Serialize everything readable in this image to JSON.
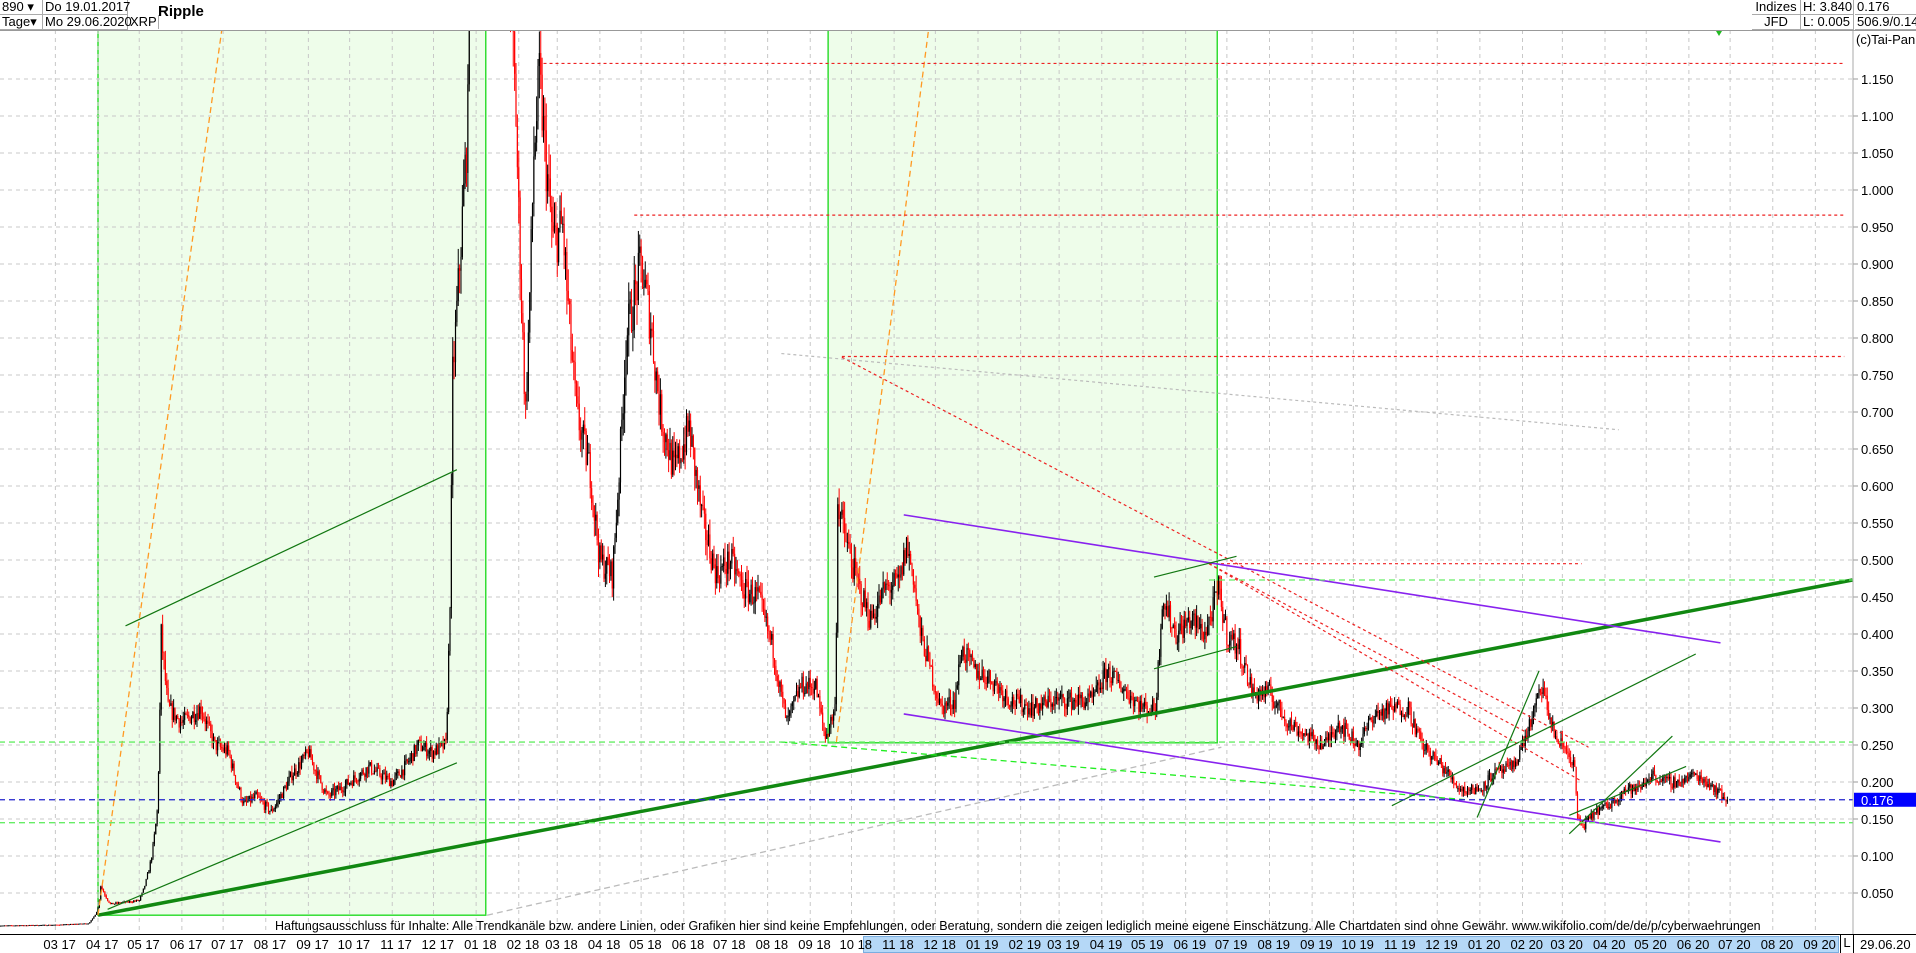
{
  "header": {
    "count": "890",
    "start_date": "Do 19.01.2017",
    "period": "Tage",
    "end_date": "Mo 29.06.2020",
    "symbol": "XRP",
    "name": "Ripple",
    "exchange_group": "Indizes",
    "exchange": "JFD",
    "high": "H: 3.840",
    "low": "L: 0.005",
    "last": "0.176",
    "extra": "506.9/0.14",
    "copyright": "(c)Tai-Pan"
  },
  "footer": {
    "disclaimer": "Haftungsausschluss für Inhalte: Alle Trendkanäle bzw. andere Linien, oder Grafiken hier sind keine Empfehlungen, oder Beratung, sondern die zeigen lediglich meine eigene Einschätzung. Alle Chartdaten sind ohne Gewähr.  www.wikifolio.com/de/de/p/cyberwaehrungen",
    "scale_mode": "L",
    "last_date": "29.06.20"
  },
  "colors": {
    "up": "#000000",
    "down": "#ff0000",
    "shade": "#eefdea",
    "shade_border": "#33dd33",
    "last_price": "#0000ff"
  },
  "chart_data": {
    "type": "candlestick",
    "title": "Ripple",
    "ylim": [
      0,
      1.2
    ],
    "grid": true,
    "y_ticks": [
      "1.150",
      "1.100",
      "1.050",
      "1.000",
      "0.950",
      "0.900",
      "0.850",
      "0.800",
      "0.750",
      "0.700",
      "0.650",
      "0.600",
      "0.550",
      "0.500",
      "0.450",
      "0.400",
      "0.350",
      "0.300",
      "0.250",
      "0.200",
      "0.150",
      "0.100",
      "0.050"
    ],
    "last_price_label": "0.176",
    "x_ticks": [
      "03 17",
      "04 17",
      "05 17",
      "06 17",
      "07 17",
      "08 17",
      "09 17",
      "10 17",
      "11 17",
      "12 17",
      "01 18",
      "02 18",
      "03 18",
      "04 18",
      "05 18",
      "06 18",
      "07 18",
      "08 18",
      "09 18",
      "10 18",
      "11 18",
      "12 18",
      "01 19",
      "02 19",
      "03 19",
      "04 19",
      "05 19",
      "06 19",
      "07 19",
      "08 19",
      "09 19",
      "10 19",
      "11 19",
      "12 19",
      "01 20",
      "02 20",
      "03 20",
      "04 20",
      "05 20",
      "06 20",
      "07 20",
      "08 20",
      "09 20"
    ],
    "close_points": [
      [
        "2017-01-19",
        0.006
      ],
      [
        "2017-03-01",
        0.007
      ],
      [
        "2017-03-25",
        0.009
      ],
      [
        "2017-04-01",
        0.03
      ],
      [
        "2017-04-03",
        0.06
      ],
      [
        "2017-04-10",
        0.035
      ],
      [
        "2017-05-01",
        0.04
      ],
      [
        "2017-05-10",
        0.1
      ],
      [
        "2017-05-14",
        0.16
      ],
      [
        "2017-05-17",
        0.4
      ],
      [
        "2017-05-22",
        0.3
      ],
      [
        "2017-06-01",
        0.28
      ],
      [
        "2017-06-15",
        0.3
      ],
      [
        "2017-06-25",
        0.25
      ],
      [
        "2017-07-05",
        0.24
      ],
      [
        "2017-07-16",
        0.17
      ],
      [
        "2017-07-25",
        0.18
      ],
      [
        "2017-08-05",
        0.16
      ],
      [
        "2017-08-20",
        0.21
      ],
      [
        "2017-09-01",
        0.24
      ],
      [
        "2017-09-15",
        0.18
      ],
      [
        "2017-10-01",
        0.2
      ],
      [
        "2017-10-15",
        0.22
      ],
      [
        "2017-11-01",
        0.2
      ],
      [
        "2017-11-10",
        0.22
      ],
      [
        "2017-11-20",
        0.25
      ],
      [
        "2017-11-30",
        0.24
      ],
      [
        "2017-12-10",
        0.25
      ],
      [
        "2017-12-13",
        0.45
      ],
      [
        "2017-12-15",
        0.75
      ],
      [
        "2017-12-20",
        0.9
      ],
      [
        "2017-12-26",
        1.1
      ],
      [
        "2017-12-30",
        2.0
      ],
      [
        "2018-01-04",
        3.3
      ],
      [
        "2018-01-08",
        2.2
      ],
      [
        "2018-01-16",
        1.3
      ],
      [
        "2018-01-20",
        1.6
      ],
      [
        "2018-01-30",
        1.1
      ],
      [
        "2018-02-06",
        0.7
      ],
      [
        "2018-02-12",
        1.05
      ],
      [
        "2018-02-16",
        1.15
      ],
      [
        "2018-02-26",
        0.93
      ],
      [
        "2018-03-05",
        0.95
      ],
      [
        "2018-03-15",
        0.7
      ],
      [
        "2018-03-25",
        0.62
      ],
      [
        "2018-04-01",
        0.5
      ],
      [
        "2018-04-10",
        0.48
      ],
      [
        "2018-04-20",
        0.8
      ],
      [
        "2018-05-01",
        0.9
      ],
      [
        "2018-05-08",
        0.82
      ],
      [
        "2018-05-15",
        0.7
      ],
      [
        "2018-05-25",
        0.62
      ],
      [
        "2018-06-05",
        0.68
      ],
      [
        "2018-06-15",
        0.55
      ],
      [
        "2018-06-25",
        0.48
      ],
      [
        "2018-07-05",
        0.5
      ],
      [
        "2018-07-15",
        0.46
      ],
      [
        "2018-07-25",
        0.45
      ],
      [
        "2018-08-05",
        0.38
      ],
      [
        "2018-08-15",
        0.28
      ],
      [
        "2018-08-25",
        0.33
      ],
      [
        "2018-09-05",
        0.33
      ],
      [
        "2018-09-12",
        0.26
      ],
      [
        "2018-09-19",
        0.3
      ],
      [
        "2018-09-21",
        0.58
      ],
      [
        "2018-09-24",
        0.55
      ],
      [
        "2018-10-05",
        0.47
      ],
      [
        "2018-10-15",
        0.42
      ],
      [
        "2018-10-25",
        0.46
      ],
      [
        "2018-11-05",
        0.47
      ],
      [
        "2018-11-10",
        0.52
      ],
      [
        "2018-11-15",
        0.48
      ],
      [
        "2018-11-20",
        0.4
      ],
      [
        "2018-11-25",
        0.37
      ],
      [
        "2018-12-05",
        0.3
      ],
      [
        "2018-12-15",
        0.31
      ],
      [
        "2018-12-20",
        0.38
      ],
      [
        "2018-12-30",
        0.35
      ],
      [
        "2019-01-10",
        0.34
      ],
      [
        "2019-01-25",
        0.31
      ],
      [
        "2019-02-10",
        0.3
      ],
      [
        "2019-02-25",
        0.31
      ],
      [
        "2019-03-10",
        0.31
      ],
      [
        "2019-03-25",
        0.31
      ],
      [
        "2019-04-05",
        0.35
      ],
      [
        "2019-04-20",
        0.32
      ],
      [
        "2019-05-01",
        0.3
      ],
      [
        "2019-05-10",
        0.3
      ],
      [
        "2019-05-15",
        0.45
      ],
      [
        "2019-05-25",
        0.4
      ],
      [
        "2019-06-05",
        0.42
      ],
      [
        "2019-06-15",
        0.4
      ],
      [
        "2019-06-25",
        0.46
      ],
      [
        "2019-07-01",
        0.4
      ],
      [
        "2019-07-10",
        0.38
      ],
      [
        "2019-07-20",
        0.32
      ],
      [
        "2019-08-01",
        0.32
      ],
      [
        "2019-08-15",
        0.28
      ],
      [
        "2019-08-30",
        0.26
      ],
      [
        "2019-09-10",
        0.25
      ],
      [
        "2019-09-20",
        0.28
      ],
      [
        "2019-10-05",
        0.25
      ],
      [
        "2019-10-15",
        0.29
      ],
      [
        "2019-11-01",
        0.3
      ],
      [
        "2019-11-10",
        0.3
      ],
      [
        "2019-11-20",
        0.25
      ],
      [
        "2019-12-05",
        0.22
      ],
      [
        "2019-12-18",
        0.19
      ],
      [
        "2020-01-01",
        0.19
      ],
      [
        "2020-01-10",
        0.21
      ],
      [
        "2020-01-25",
        0.22
      ],
      [
        "2020-02-05",
        0.27
      ],
      [
        "2020-02-15",
        0.33
      ],
      [
        "2020-02-25",
        0.26
      ],
      [
        "2020-03-05",
        0.24
      ],
      [
        "2020-03-10",
        0.22
      ],
      [
        "2020-03-12",
        0.15
      ],
      [
        "2020-03-16",
        0.14
      ],
      [
        "2020-03-25",
        0.16
      ],
      [
        "2020-04-05",
        0.17
      ],
      [
        "2020-04-15",
        0.19
      ],
      [
        "2020-04-25",
        0.19
      ],
      [
        "2020-05-05",
        0.21
      ],
      [
        "2020-05-15",
        0.2
      ],
      [
        "2020-05-25",
        0.2
      ],
      [
        "2020-06-05",
        0.21
      ],
      [
        "2020-06-15",
        0.2
      ],
      [
        "2020-06-29",
        0.176
      ]
    ],
    "shaded_zones": [
      {
        "from": "2017-04-01",
        "to": "2018-01-08",
        "top": null,
        "bottom": 0.02
      },
      {
        "from": "2018-09-14",
        "to": "2019-06-24",
        "top": null,
        "bottom": 0.253
      }
    ],
    "lines": [
      {
        "from": [
          "2017-04-01",
          0.02
        ],
        "to": [
          "2020-09-28",
          0.473
        ],
        "color": "#118811",
        "style": "thick"
      },
      {
        "from": [
          "2017-04-21",
          0.411
        ],
        "to": [
          "2017-12-18",
          0.622
        ],
        "color": "#117711",
        "style": "thin"
      },
      {
        "from": [
          "2017-04-08",
          0.028
        ],
        "to": [
          "2017-12-18",
          0.226
        ],
        "color": "#117711",
        "style": "thin"
      },
      {
        "from": [
          "2017-04-01",
          0.02
        ],
        "to": [
          "2017-06-30",
          1.216
        ],
        "color": "#ff9922",
        "style": "dash"
      },
      {
        "from": [
          "2018-09-20",
          0.254
        ],
        "to": [
          "2018-11-26",
          1.216
        ],
        "color": "#ff9922",
        "style": "dash"
      },
      {
        "from": [
          "2018-02-19",
          1.171
        ],
        "to": [
          "2020-09-22",
          1.171
        ],
        "color": "#ee2222",
        "style": "dot"
      },
      {
        "from": [
          "2018-04-26",
          0.966
        ],
        "to": [
          "2020-09-22",
          0.966
        ],
        "color": "#ee2222",
        "style": "dot"
      },
      {
        "from": [
          "2018-09-24",
          0.775
        ],
        "to": [
          "2020-09-22",
          0.775
        ],
        "color": "#ee2222",
        "style": "dot"
      },
      {
        "from": [
          "2019-06-18",
          0.495
        ],
        "to": [
          "2020-03-15",
          0.495
        ],
        "color": "#ee2222",
        "style": "dot"
      },
      {
        "from": [
          "2018-09-24",
          0.774
        ],
        "to": [
          "2020-03-20",
          0.247
        ],
        "color": "#ee2222",
        "style": "dot"
      },
      {
        "from": [
          "2019-06-18",
          0.495
        ],
        "to": [
          "2020-02-04",
          0.267
        ],
        "color": "#ee2222",
        "style": "dot"
      },
      {
        "from": [
          "2019-06-18",
          0.495
        ],
        "to": [
          "2020-03-15",
          0.201
        ],
        "color": "#ee2222",
        "style": "dot"
      },
      {
        "from": [
          "2018-11-08",
          0.561
        ],
        "to": [
          "2020-06-24",
          0.388
        ],
        "color": "#8822ee",
        "style": "solid"
      },
      {
        "from": [
          "2018-11-08",
          0.292
        ],
        "to": [
          "2020-06-24",
          0.119
        ],
        "color": "#8822ee",
        "style": "solid"
      },
      {
        "from": [
          "2018-08-11",
          0.779
        ],
        "to": [
          "2020-04-11",
          0.676
        ],
        "color": "#bbbbbb",
        "style": "dot"
      },
      {
        "from": [
          "2018-01-09",
          0.02
        ],
        "to": [
          "2019-06-27",
          0.247
        ],
        "color": "#bbbbbb",
        "style": "dash"
      },
      {
        "from": [
          "2018-08-11",
          0.254
        ],
        "to": [
          "2019-12-22",
          0.176
        ],
        "color": "#22ee22",
        "style": "dash"
      },
      {
        "from": [
          "2019-10-29",
          0.168
        ],
        "to": [
          "2020-06-06",
          0.373
        ],
        "color": "#117711",
        "style": "thin"
      },
      {
        "from": [
          "2019-05-09",
          0.477
        ],
        "to": [
          "2019-07-08",
          0.505
        ],
        "color": "#117711",
        "style": "thin"
      },
      {
        "from": [
          "2019-05-09",
          0.353
        ],
        "to": [
          "2019-07-08",
          0.383
        ],
        "color": "#117711",
        "style": "thin"
      },
      {
        "from": [
          "2019-12-30",
          0.152
        ],
        "to": [
          "2020-02-13",
          0.35
        ],
        "color": "#117711",
        "style": "thin"
      },
      {
        "from": [
          "2020-03-06",
          0.155
        ],
        "to": [
          "2020-05-30",
          0.221
        ],
        "color": "#117711",
        "style": "thin"
      },
      {
        "from": [
          "2020-03-06",
          0.13
        ],
        "to": [
          "2020-05-20",
          0.262
        ],
        "color": "#117711",
        "style": "thin"
      },
      {
        "from": [
          "2019-06-18",
          0.473
        ],
        "to": [
          "2020-09-28",
          0.473
        ],
        "color": "#66ee66",
        "style": "dash"
      },
      {
        "from": [
          "2017-01-19",
          0.254
        ],
        "to": [
          "2020-09-28",
          0.254
        ],
        "color": "#66ee66",
        "style": "dash"
      },
      {
        "from": [
          "2017-01-19",
          0.145
        ],
        "to": [
          "2020-09-28",
          0.145
        ],
        "color": "#66ee66",
        "style": "dash"
      },
      {
        "from": [
          "2017-01-19",
          0.176
        ],
        "to": [
          "2020-09-28",
          0.176
        ],
        "color": "#2222cc",
        "style": "dash"
      }
    ]
  }
}
